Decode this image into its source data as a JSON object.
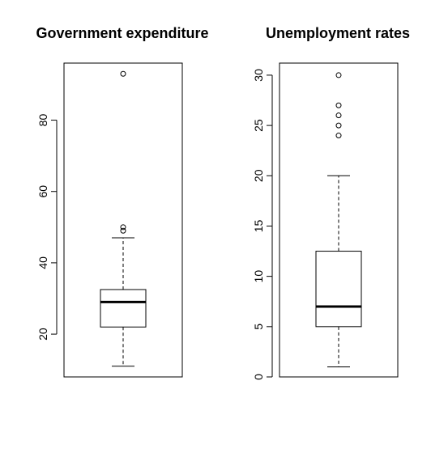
{
  "chart_data": [
    {
      "type": "boxplot",
      "title": "Government expenditure",
      "xlabel": "",
      "ylabel": "",
      "ylim": [
        8,
        96
      ],
      "yticks": [
        20,
        40,
        60,
        80
      ],
      "box": {
        "whisker_low": 11,
        "q1": 22,
        "median": 29,
        "q3": 32.5,
        "whisker_high": 47
      },
      "outliers": [
        49,
        50,
        93
      ]
    },
    {
      "type": "boxplot",
      "title": "Unemployment rates",
      "xlabel": "",
      "ylabel": "",
      "ylim": [
        0,
        31.2
      ],
      "yticks": [
        0,
        5,
        10,
        15,
        20,
        25,
        30
      ],
      "box": {
        "whisker_low": 1,
        "q1": 5,
        "median": 7,
        "q3": 12.5,
        "whisker_high": 20
      },
      "outliers": [
        24,
        25,
        26,
        27,
        30
      ]
    }
  ]
}
